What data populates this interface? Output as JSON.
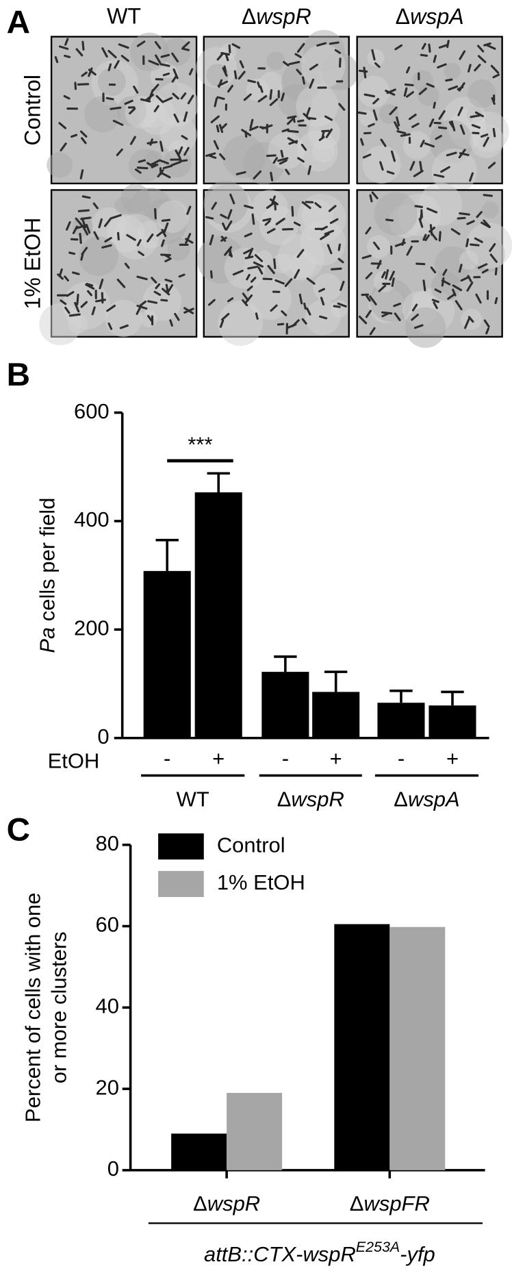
{
  "panel_labels": [
    "A",
    "B",
    "C"
  ],
  "panel_a": {
    "columns": [
      "WT",
      "ΔwspR",
      "ΔwspA"
    ],
    "rows": [
      "Control",
      "1% EtOH"
    ]
  },
  "chart_data": [
    {
      "type": "bar",
      "y_label": "Pa cells per field",
      "row_label": "EtOH",
      "categories": [
        "-",
        "+",
        "-",
        "+",
        "-",
        "+"
      ],
      "groups": [
        "WT",
        "ΔwspR",
        "ΔwspA"
      ],
      "values": [
        308,
        453,
        122,
        85,
        65,
        60
      ],
      "errors": [
        57,
        35,
        28,
        37,
        22,
        25
      ],
      "color": "#000000",
      "significance_label": "***",
      "ylim": [
        0,
        600
      ],
      "yticks": [
        0,
        200,
        400,
        600
      ]
    },
    {
      "type": "grouped_bar",
      "y_label": [
        "Percent of cells with one",
        "or more clusters"
      ],
      "categories": [
        "ΔwspR",
        "ΔwspFR"
      ],
      "series": [
        {
          "name": "Control",
          "color": "#000000",
          "values": [
            9,
            60.5
          ]
        },
        {
          "name": "1% EtOH",
          "color": "#a6a6a6",
          "values": [
            19,
            59.8
          ]
        }
      ],
      "x_label": {
        "text": "attB::CTX-wspR",
        "superscript": "E253A",
        "suffix": "-yfp"
      },
      "ylim": [
        0,
        80
      ],
      "yticks": [
        0,
        20,
        40,
        60,
        80
      ]
    }
  ]
}
